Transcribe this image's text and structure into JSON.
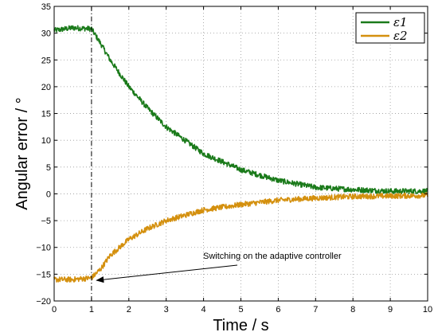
{
  "chart_data": {
    "type": "line",
    "xlabel": "Time / s",
    "ylabel": "Angular error / °",
    "xlim": [
      0,
      10
    ],
    "ylim": [
      -20,
      35
    ],
    "xticks": [
      "0",
      "1",
      "2",
      "3",
      "4",
      "5",
      "6",
      "7",
      "8",
      "9",
      "10"
    ],
    "yticks": [
      "−20",
      "−15",
      "−10",
      "−5",
      "0",
      "5",
      "10",
      "15",
      "20",
      "25",
      "30",
      "35"
    ],
    "grid": true,
    "legend": "top-right",
    "series": [
      {
        "name": "ε1",
        "color": "#1a7a1a",
        "x": [
          0,
          0.5,
          1.0,
          1.25,
          1.5,
          2.0,
          2.5,
          3.0,
          3.5,
          4.0,
          5.0,
          6.0,
          7.0,
          8.0,
          9.0,
          10.0
        ],
        "y": [
          30.5,
          31,
          30.8,
          28,
          25,
          20,
          16,
          12.5,
          10,
          7.5,
          4.5,
          2.5,
          1.2,
          0.8,
          0.5,
          0.5
        ]
      },
      {
        "name": "ε2",
        "color": "#d4900e",
        "x": [
          0,
          0.5,
          1.0,
          1.25,
          1.5,
          2.0,
          2.5,
          3.0,
          3.5,
          4.0,
          5.0,
          6.0,
          7.0,
          8.0,
          9.0,
          10.0
        ],
        "y": [
          -16,
          -16,
          -15.7,
          -14,
          -11.5,
          -8.5,
          -6.5,
          -5,
          -4,
          -3,
          -2,
          -1.2,
          -0.8,
          -0.5,
          -0.4,
          -0.3
        ]
      }
    ],
    "vline": {
      "x": 1.0
    },
    "annotation": {
      "text": "Switching on the adaptive controller",
      "x": 1.05,
      "y": -16
    }
  }
}
